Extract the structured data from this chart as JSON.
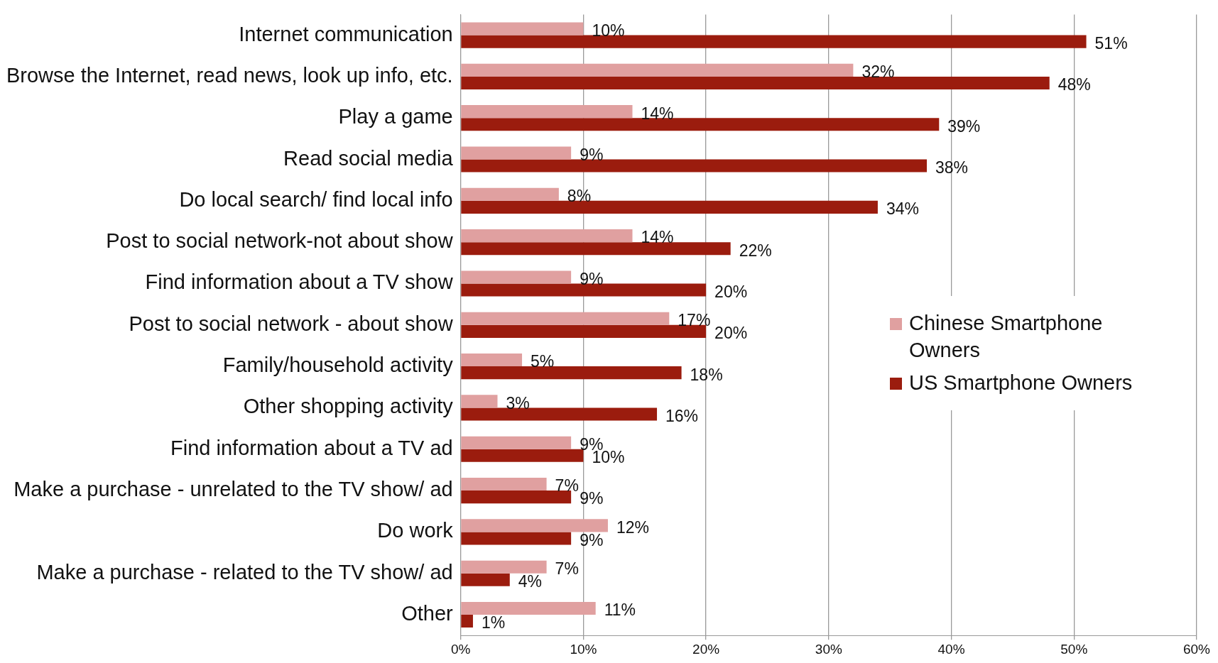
{
  "chart_data": {
    "type": "bar",
    "orientation": "horizontal",
    "categories": [
      "Internet communication",
      "Browse the Internet, read news, look up info, etc.",
      "Play a game",
      "Read social media",
      "Do local search/ find local info",
      "Post to social network-not about show",
      "Find information about a TV show",
      "Post to social network - about show",
      "Family/household activity",
      "Other shopping activity",
      "Find information about a TV ad",
      "Make a purchase - unrelated to the TV show/ ad",
      "Do work",
      "Make a purchase - related to the TV show/ ad",
      "Other"
    ],
    "series": [
      {
        "name": "Chinese Smartphone Owners",
        "color": "#e0a0a0",
        "values": [
          10,
          32,
          14,
          9,
          8,
          14,
          9,
          17,
          5,
          3,
          9,
          7,
          12,
          7,
          11
        ],
        "value_labels": [
          "10%",
          "32%",
          "14%",
          "9%",
          "8%",
          "14%",
          "9%",
          "17%",
          "5%",
          "3%",
          "9%",
          "7%",
          "12%",
          "7%",
          "11%"
        ]
      },
      {
        "name": "US Smartphone Owners",
        "color": "#9b1c0e",
        "values": [
          51,
          48,
          39,
          38,
          34,
          22,
          20,
          20,
          18,
          16,
          10,
          9,
          9,
          4,
          1
        ],
        "value_labels": [
          "51%",
          "48%",
          "39%",
          "38%",
          "34%",
          "22%",
          "20%",
          "20%",
          "18%",
          "16%",
          "10%",
          "9%",
          "9%",
          "4%",
          "1%"
        ]
      }
    ],
    "xlim": [
      0,
      60
    ],
    "xticks": [
      {
        "value": 0,
        "label": "0%"
      },
      {
        "value": 10,
        "label": "10%"
      },
      {
        "value": 20,
        "label": "20%"
      },
      {
        "value": 30,
        "label": "30%"
      },
      {
        "value": 40,
        "label": "40%"
      },
      {
        "value": 50,
        "label": "50%"
      },
      {
        "value": 60,
        "label": "60%"
      }
    ],
    "grid": "x",
    "legend": "right"
  }
}
